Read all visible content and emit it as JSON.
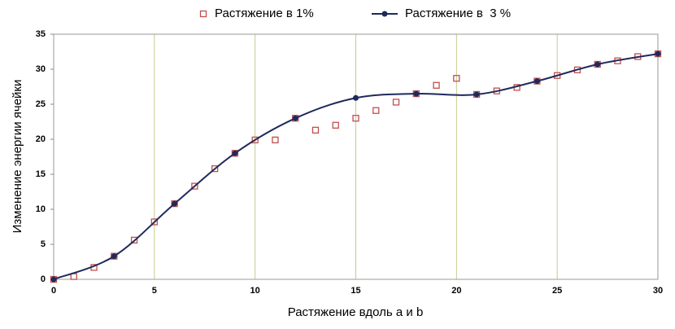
{
  "chart_data": {
    "type": "line",
    "x_label": "Растяжение вдоль a и b",
    "y_label": "Изменение энергии ячейки",
    "xlim": [
      0,
      30
    ],
    "xticks": [
      0,
      5,
      10,
      15,
      20,
      25,
      30
    ],
    "ylim": [
      0,
      35
    ],
    "yticks": [
      0,
      5,
      10,
      15,
      20,
      25,
      30,
      35
    ],
    "grid": true,
    "series": [
      {
        "name": "Растяжение в 1%",
        "color": "#c0504d",
        "marker": "square",
        "line": false,
        "x": [
          0,
          1,
          2,
          3,
          4,
          5,
          6,
          7,
          8,
          9,
          10,
          11,
          12,
          13,
          14,
          15,
          16,
          17,
          18,
          19,
          20,
          21,
          22,
          23,
          24,
          25,
          26,
          27,
          28,
          29,
          30
        ],
        "values": [
          0,
          0.4,
          1.7,
          3.3,
          5.6,
          8.2,
          10.8,
          13.3,
          15.8,
          18,
          19.9,
          19.9,
          23,
          21.3,
          22,
          23,
          24.1,
          25.3,
          26.5,
          27.7,
          28.7,
          26.4,
          26.9,
          27.4,
          28.3,
          29.1,
          29.9,
          30.7,
          31.2,
          31.8,
          32.2
        ]
      },
      {
        "name": "Растяжение в  3 %",
        "color": "#1f2a5c",
        "marker": "circle",
        "line": true,
        "x": [
          0,
          3,
          6,
          9,
          12,
          15,
          18,
          21,
          24,
          27,
          30
        ],
        "values": [
          0,
          3.3,
          10.8,
          18,
          23,
          25.9,
          26.5,
          26.4,
          28.3,
          30.7,
          32.2
        ]
      }
    ]
  }
}
